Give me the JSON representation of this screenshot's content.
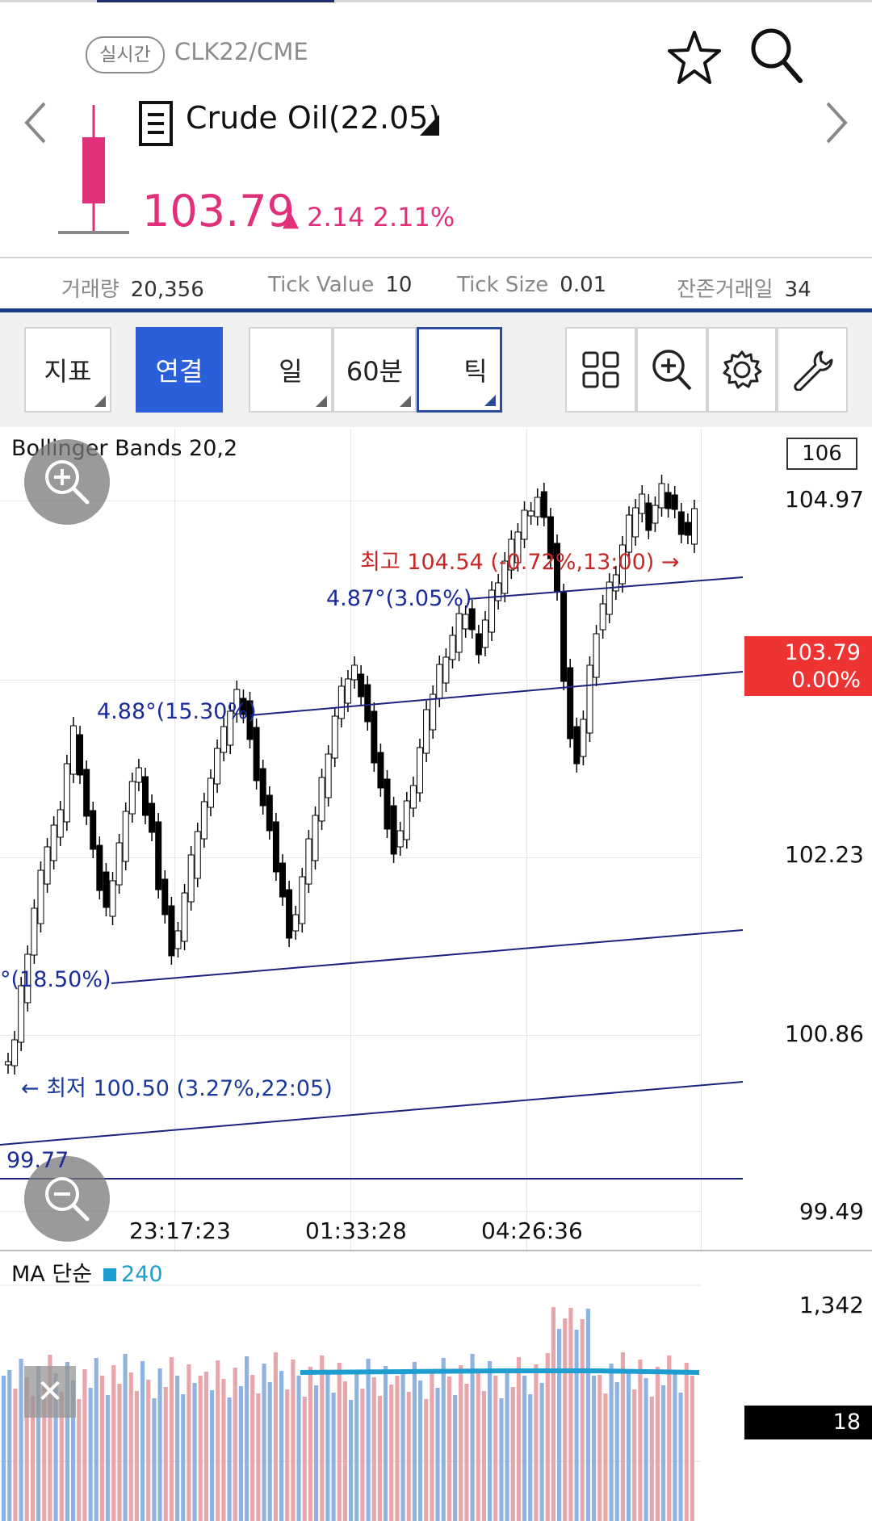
{
  "header": {
    "realtime_badge": "실시간",
    "symbol": "CLK22/CME",
    "name": "Crude Oil(22.05)",
    "price": "103.79",
    "change": "2.14",
    "change_pct": "2.11%",
    "up_color": "#e0307a"
  },
  "stats": [
    {
      "label": "거래량",
      "value": "20,356"
    },
    {
      "label": "Tick Value",
      "value": "10"
    },
    {
      "label": "Tick Size",
      "value": "0.01"
    },
    {
      "label": "잔존거래일",
      "value": "34"
    }
  ],
  "toolbar": {
    "indicator_label": "지표",
    "link_label": "연결",
    "period_day": "일",
    "period_60m": "60분",
    "period_tick": "틱"
  },
  "chart": {
    "indicator_title": "Bollinger Bands 20,2",
    "top_box_value": "106",
    "y_labels": [
      "104.97",
      "102.23",
      "100.86",
      "99.49"
    ],
    "x_labels": [
      "23:17:23",
      "01:33:28",
      "04:26:36"
    ],
    "last_price": "103.79",
    "last_price_pct": "0.00%",
    "high_annotation": "최고 104.54 (-0.72%,13:00) →",
    "low_annotation": "← 최저 100.50 (3.27%,22:05)",
    "trend_label_1": "4.87°(3.05%)",
    "trend_label_2": "4.88°(15.30%)",
    "trend_label_3": "°(18.50%)",
    "left_value": "99.77",
    "colors": {
      "candle_up": "#ffffff",
      "candle_down": "#000000",
      "trend": "#1a237e",
      "high": "#c62828",
      "low": "#1a3a9a",
      "last_price_bg": "#ee3333"
    }
  },
  "volume": {
    "title": "MA 단순",
    "ma_period": "240",
    "y_label": "1,342",
    "current": "18",
    "colors": {
      "up": "#e8a6aa",
      "down": "#8fb3e0",
      "ma": "#1e9dd0"
    }
  },
  "chart_data": [
    {
      "type": "candlestick",
      "title": "Bollinger Bands 20,2",
      "ylim": [
        99.49,
        104.97
      ],
      "y_ticks": [
        104.97,
        102.23,
        100.86,
        99.49
      ],
      "x_ticks": [
        "23:17:23",
        "01:33:28",
        "04:26:36"
      ],
      "high": 104.54,
      "low": 100.5,
      "last": 103.79
    },
    {
      "type": "bar",
      "title": "MA 단순",
      "y_ticks": [
        1342
      ],
      "current": 18,
      "series": [
        {
          "name": "240",
          "type": "line"
        }
      ]
    }
  ]
}
